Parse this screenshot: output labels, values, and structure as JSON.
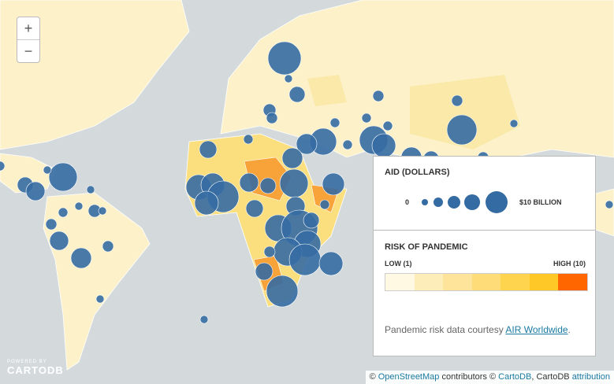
{
  "zoom": {
    "in": "+",
    "out": "−"
  },
  "legend": {
    "aid_title": "AID (DOLLARS)",
    "aid_min": "0",
    "aid_max": "$10 BILLION",
    "risk_title": "RISK OF PANDEMIC",
    "risk_low": "LOW (1)",
    "risk_high": "HIGH (10)",
    "credit_text": "Pandemic risk data courtesy ",
    "credit_link": "AIR Worldwide",
    "credit_end": "."
  },
  "attribution": {
    "prefix": "© ",
    "osm": "OpenStreetMap",
    "middle": " contributors © ",
    "cartodb": "CartoDB",
    "comma": ", CartoDB ",
    "attr": "attribution"
  },
  "logo": {
    "powered": "POWERED BY",
    "name": "CARTODB"
  }
}
